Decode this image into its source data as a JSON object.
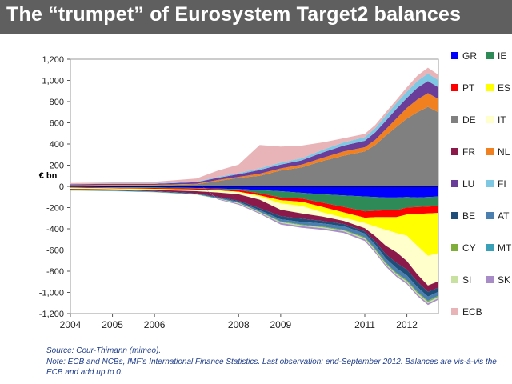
{
  "title": "The “trumpet” of Eurosystem Target2 balances",
  "source": "Source: Cour-Thimann (mimeo).",
  "note": "Note: ECB and NCBs, IMF’s International Finance Statistics. Last observation: end-September 2012. Balances are vis-à-vis the ECB and add up to 0.",
  "chart_data": {
    "type": "area",
    "stacked": true,
    "ylabel": "€ bn",
    "ylim": [
      -1200,
      1200
    ],
    "yticks": [
      -1200,
      -1000,
      -800,
      -600,
      -400,
      -200,
      0,
      200,
      400,
      600,
      800,
      1000,
      1200
    ],
    "ytick_labels": [
      "-1,200",
      "-1,000",
      "-800",
      "-600",
      "-400",
      "-200",
      "0",
      "200",
      "400",
      "600",
      "800",
      "1,000",
      "1,200"
    ],
    "xlim": [
      2004,
      2012.75
    ],
    "xticks": [
      2004,
      2005,
      2006,
      2008,
      2009,
      2011,
      2012
    ],
    "xtick_labels": [
      "2004",
      "2005",
      "2006",
      "2008",
      "2009",
      "2011",
      "2012"
    ],
    "legend_position": "right",
    "x": [
      2004,
      2005,
      2006,
      2007,
      2007.5,
      2008,
      2008.5,
      2009,
      2009.5,
      2010,
      2010.5,
      2011,
      2011.25,
      2011.5,
      2011.75,
      2012,
      2012.25,
      2012.5,
      2012.75
    ],
    "series": [
      {
        "name": "GR",
        "color": "#0000ff",
        "values": [
          -5,
          -8,
          -10,
          -15,
          -20,
          -25,
          -35,
          -45,
          -60,
          -75,
          -85,
          -95,
          -100,
          -105,
          -105,
          -100,
          -105,
          -100,
          -95
        ]
      },
      {
        "name": "IE",
        "color": "#2e8b57",
        "values": [
          -5,
          -5,
          -5,
          -5,
          -5,
          -10,
          -30,
          -60,
          -55,
          -80,
          -110,
          -140,
          -130,
          -120,
          -120,
          -100,
          -90,
          -90,
          -90
        ]
      },
      {
        "name": "PT",
        "color": "#ff0000",
        "values": [
          -3,
          -5,
          -8,
          -10,
          -12,
          -15,
          -20,
          -25,
          -30,
          -40,
          -50,
          -60,
          -60,
          -65,
          -65,
          -65,
          -65,
          -65,
          -65
        ]
      },
      {
        "name": "ES",
        "color": "#ffff00",
        "values": [
          -5,
          -5,
          -5,
          -5,
          -5,
          -5,
          -10,
          -30,
          -40,
          -50,
          -50,
          -50,
          -90,
          -120,
          -150,
          -200,
          -300,
          -400,
          -380
        ]
      },
      {
        "name": "DE",
        "color": "#808080",
        "values": [
          5,
          10,
          10,
          20,
          50,
          80,
          100,
          150,
          180,
          240,
          290,
          330,
          390,
          480,
          560,
          640,
          700,
          750,
          700
        ]
      },
      {
        "name": "IT",
        "color": "#ffffcc",
        "values": [
          -5,
          -5,
          -5,
          -10,
          -15,
          -20,
          -30,
          -60,
          -70,
          -40,
          -30,
          -50,
          -90,
          -150,
          -180,
          -240,
          -270,
          -280,
          -265
        ]
      },
      {
        "name": "FR",
        "color": "#8b1a4a",
        "values": [
          -5,
          -5,
          -10,
          -20,
          -40,
          -60,
          -80,
          -60,
          -50,
          -40,
          -30,
          -30,
          -50,
          -80,
          -100,
          -80,
          -70,
          -60,
          -60
        ]
      },
      {
        "name": "NL",
        "color": "#f08020",
        "values": [
          5,
          5,
          5,
          5,
          10,
          10,
          20,
          20,
          25,
          30,
          40,
          40,
          50,
          60,
          80,
          100,
          120,
          130,
          125
        ]
      },
      {
        "name": "LU",
        "color": "#6a3d9a",
        "values": [
          10,
          10,
          10,
          15,
          20,
          25,
          35,
          35,
          40,
          50,
          55,
          60,
          70,
          80,
          90,
          95,
          110,
          115,
          110
        ]
      },
      {
        "name": "FI",
        "color": "#7ec8e3",
        "values": [
          2,
          3,
          3,
          5,
          8,
          10,
          15,
          20,
          20,
          25,
          30,
          35,
          40,
          50,
          55,
          60,
          65,
          70,
          68
        ]
      },
      {
        "name": "BE",
        "color": "#1f4e79",
        "values": [
          -5,
          -5,
          -5,
          -5,
          -8,
          -10,
          -20,
          -30,
          -30,
          -25,
          -20,
          -20,
          -30,
          -40,
          -50,
          -55,
          -50,
          -45,
          -40
        ]
      },
      {
        "name": "AT",
        "color": "#4a7fb0",
        "values": [
          -5,
          -5,
          -5,
          -5,
          -8,
          -10,
          -15,
          -20,
          -25,
          -30,
          -35,
          -35,
          -40,
          -40,
          -45,
          -45,
          -45,
          -40,
          -35
        ]
      },
      {
        "name": "CY",
        "color": "#7fae3a",
        "values": [
          -1,
          -1,
          -1,
          -1,
          -1,
          -2,
          -3,
          -5,
          -5,
          -5,
          -5,
          -8,
          -10,
          -10,
          -10,
          -10,
          -10,
          -10,
          -10
        ]
      },
      {
        "name": "MT",
        "color": "#3aa0b8",
        "values": [
          0,
          0,
          0,
          0,
          0,
          -1,
          -1,
          -2,
          -2,
          -2,
          -2,
          -2,
          -2,
          -2,
          -2,
          -2,
          -2,
          -2,
          -2
        ]
      },
      {
        "name": "SI",
        "color": "#c8e0a0",
        "values": [
          -2,
          -2,
          -2,
          -3,
          -3,
          -5,
          -5,
          -8,
          -8,
          -8,
          -8,
          -10,
          -10,
          -10,
          -10,
          -10,
          -12,
          -12,
          -12
        ]
      },
      {
        "name": "SK",
        "color": "#a88cc8",
        "values": [
          0,
          0,
          0,
          0,
          -5,
          -10,
          -10,
          -15,
          -15,
          -15,
          -15,
          -15,
          -15,
          -15,
          -15,
          -15,
          -15,
          -15,
          -15
        ]
      },
      {
        "name": "ECB",
        "color": "#e8b4b8",
        "values": [
          10,
          10,
          15,
          30,
          60,
          80,
          220,
          150,
          120,
          70,
          40,
          30,
          30,
          30,
          30,
          40,
          50,
          55,
          50
        ]
      }
    ]
  }
}
